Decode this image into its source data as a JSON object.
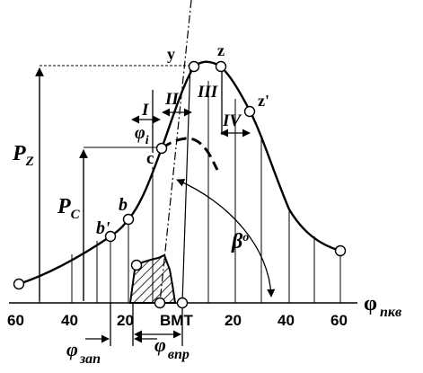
{
  "diagram": {
    "axis": {
      "label_main": "φ",
      "label_sub": "пкв",
      "ticks": [
        "60",
        "40",
        "20",
        "20",
        "40",
        "60"
      ],
      "tdc_label": "ВМТ"
    },
    "points": {
      "y": "y",
      "z": "z",
      "z_prime": "z'",
      "c": "c",
      "b": "b",
      "b_prime": "b'"
    },
    "pressures": {
      "pz_main": "P",
      "pz_sub": "Z",
      "pc_main": "P",
      "pc_sub": "C"
    },
    "phases": {
      "I": "I",
      "II": "II",
      "III": "III",
      "IV": "IV"
    },
    "angles": {
      "phi_i_main": "φ",
      "phi_i_sub": "i",
      "beta_main": "β",
      "beta_sub": "o",
      "phi_zap_main": "φ",
      "phi_zap_sub": "зап",
      "phi_vpr_main": "φ",
      "phi_vpr_sub": "впр"
    },
    "colors": {
      "ink": "#000000",
      "background": "#ffffff"
    }
  }
}
